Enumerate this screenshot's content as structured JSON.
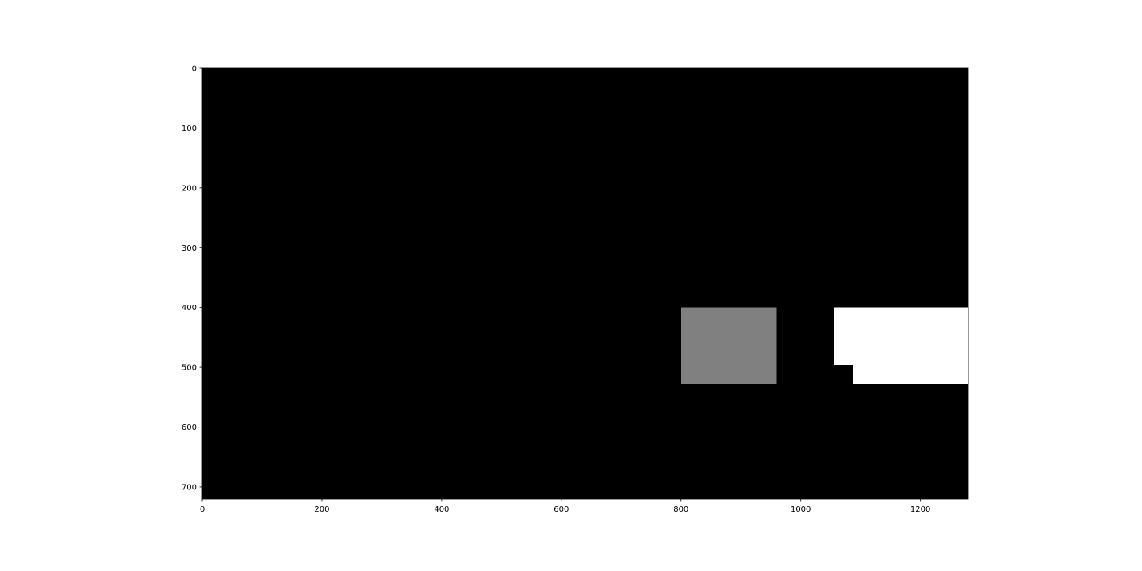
{
  "chart_data": {
    "type": "heatmap",
    "xlim": [
      0,
      1280
    ],
    "ylim": [
      720,
      0
    ],
    "x_ticks": [
      0,
      200,
      400,
      600,
      800,
      1000,
      1200
    ],
    "y_ticks": [
      0,
      100,
      200,
      300,
      400,
      500,
      600,
      700
    ],
    "x_tick_labels": [
      "0",
      "200",
      "400",
      "600",
      "800",
      "1000",
      "1200"
    ],
    "y_tick_labels": [
      "0",
      "100",
      "200",
      "300",
      "400",
      "500",
      "600",
      "700"
    ],
    "background_value": 0,
    "regions": [
      {
        "x_range": [
          800,
          960
        ],
        "y_range": [
          400,
          528
        ],
        "value": 0.5
      },
      {
        "x_range": [
          1056,
          1280
        ],
        "y_range": [
          400,
          496
        ],
        "value": 1
      },
      {
        "x_range": [
          1088,
          1280
        ],
        "y_range": [
          496,
          528
        ],
        "value": 1
      }
    ],
    "colormap": "gray",
    "colors": {
      "background": "#000000",
      "mid": "#808080",
      "max": "#ffffff"
    },
    "grid": false
  }
}
